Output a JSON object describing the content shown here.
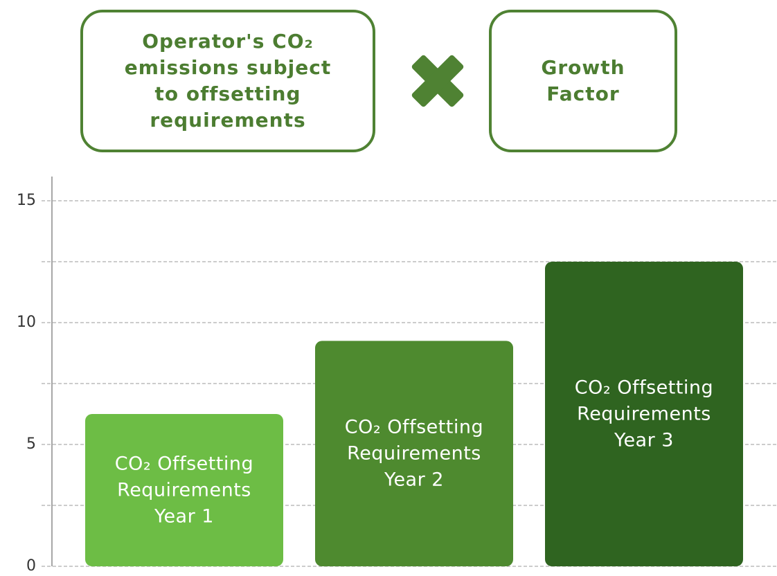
{
  "formula": {
    "terms": [
      "Operator's CO₂ emissions subject to offsetting requirements",
      "Growth Factor"
    ]
  },
  "chart_data": {
    "type": "bar",
    "categories": [
      "CO₂ Offsetting Requirements Year 1",
      "CO₂ Offsetting Requirements Year 2",
      "CO₂ Offsetting Requirements Year 3"
    ],
    "values": [
      6.25,
      9.25,
      12.5
    ],
    "colors": [
      "#6dbd45",
      "#4e8a2f",
      "#2f6420"
    ],
    "ylim": [
      0,
      15
    ],
    "yticks": [
      0,
      5,
      10,
      15
    ],
    "minor_grid": [
      2.5,
      7.5,
      12.5
    ],
    "grid": true
  }
}
